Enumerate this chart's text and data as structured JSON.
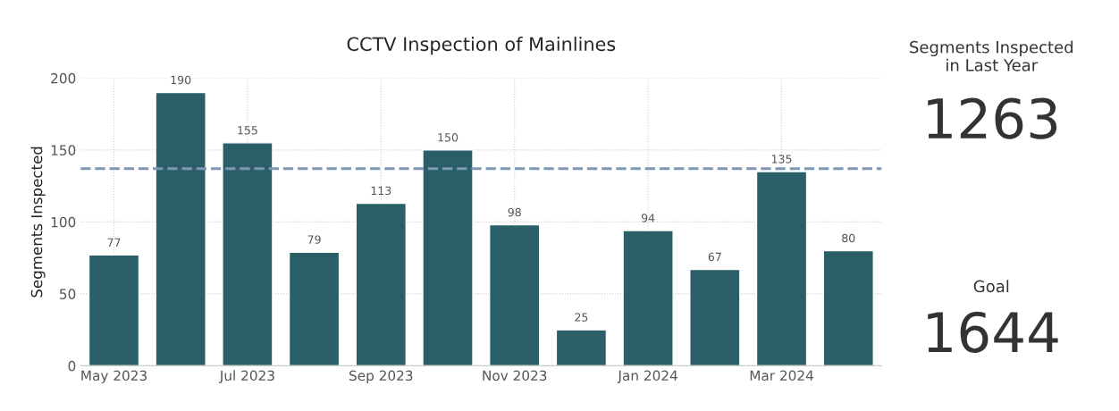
{
  "chart_data": [
    {
      "type": "bar",
      "title": "CCTV Inspection of Mainlines",
      "ylabel": "Segments Inspected",
      "categories": [
        "May 2023",
        null,
        "Jul 2023",
        null,
        "Sep 2023",
        null,
        "Nov 2023",
        null,
        "Jan 2024",
        null,
        "Mar 2024",
        null
      ],
      "values": [
        77,
        190,
        155,
        79,
        113,
        150,
        98,
        25,
        94,
        67,
        135,
        80
      ],
      "color": "#2b5f68",
      "ylim": [
        0,
        200
      ],
      "yticks": [
        0,
        50,
        100,
        150,
        200
      ],
      "grid": true,
      "data_labels": true,
      "ref_lines": [
        {
          "axis": "y",
          "value": 137,
          "color": "#7f96b4",
          "line_style": "dashed"
        }
      ]
    },
    {
      "type": "other",
      "annotations": [
        "Segments Inspected\nin Last Year",
        "1263",
        "Goal",
        "1644"
      ]
    }
  ]
}
